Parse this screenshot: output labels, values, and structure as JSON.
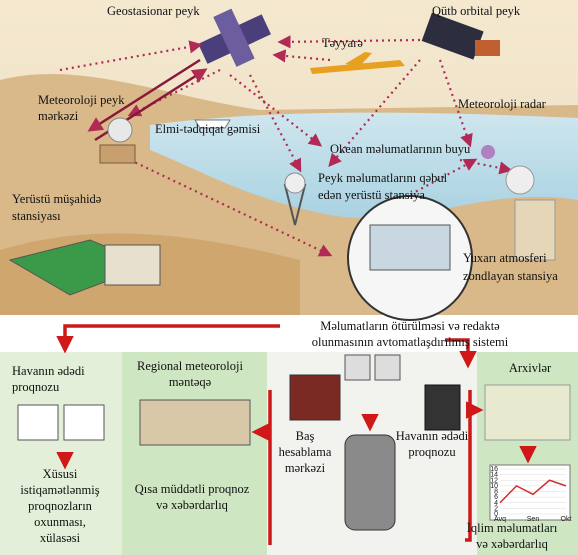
{
  "scene": {
    "labels": [
      {
        "lines": [
          "Geostasionar peyk"
        ]
      },
      {
        "lines": [
          "Qütb orbital peyk"
        ]
      },
      {
        "lines": [
          "Təyyarə"
        ]
      },
      {
        "lines": [
          "Meteoroloji peyk",
          "mərkəzi"
        ]
      },
      {
        "lines": [
          "Elmi-tədqiqat gəmisi"
        ]
      },
      {
        "lines": [
          "Meteoroloji radar"
        ]
      },
      {
        "lines": [
          "Okean məlumatlarının buyu"
        ]
      },
      {
        "lines": [
          "Peyk məlumatlarını qəbul",
          "edən yerüstü stansiya"
        ]
      },
      {
        "lines": [
          "Yerüstü müşahidə",
          "stansiyası"
        ]
      },
      {
        "lines": [
          "Yuxarı atmosferi",
          "zondlayan stansiya"
        ]
      }
    ]
  },
  "system": {
    "labels": [
      {
        "lines": [
          "Məlumatların ötürülməsi və redaktə",
          "olunmasının avtomatlaşdırılmış sistemi"
        ]
      },
      {
        "lines": [
          "Havanın ədədi",
          "proqnozu"
        ]
      },
      {
        "lines": [
          "Regional meteoroloji",
          "məntəqə"
        ]
      },
      {
        "lines": [
          "Baş",
          "hesablama",
          "mərkəzi"
        ]
      },
      {
        "lines": [
          "Havanın ədədi",
          "proqnozu"
        ]
      },
      {
        "lines": [
          "Arxivlər"
        ]
      },
      {
        "lines": [
          "Qısa müddətli proqnoz",
          "və xəbərdarlıq"
        ]
      },
      {
        "lines": [
          "Xüsusi",
          "istiqamətlənmiş",
          "proqnozların",
          "oxunması,",
          "xülasəsi"
        ]
      },
      {
        "lines": [
          "İqlim məlumatları",
          "və xəbərdarlıq"
        ]
      }
    ],
    "climate_chart": {
      "type": "line",
      "categories": [
        "Avq",
        null,
        "Sen",
        null,
        "Okt"
      ],
      "values": [
        4,
        10,
        7,
        12,
        10
      ],
      "ylim": [
        0,
        16
      ],
      "yticks": [
        0,
        2,
        4,
        6,
        8,
        10,
        12,
        14,
        16
      ],
      "color": "#d03030"
    }
  }
}
